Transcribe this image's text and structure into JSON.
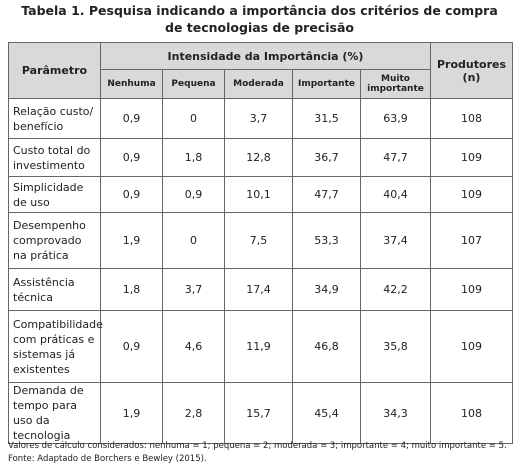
{
  "title": "Tabela 1. Pesquisa indicando a importância dos critérios de compra de tecnologias de precisão",
  "table": {
    "header": {
      "parameter": "Parâmetro",
      "group": "Intensidade da Importância (%)",
      "producers": "Produtores (n)",
      "levels": [
        "Nenhuma",
        "Pequena",
        "Moderada",
        "Importante",
        "Muito importante"
      ]
    },
    "rows": [
      [
        "Relação custo/ benefício",
        "0,9",
        "0",
        "3,7",
        "31,5",
        "63,9",
        "108"
      ],
      [
        "Custo total do investimento",
        "0,9",
        "1,8",
        "12,8",
        "36,7",
        "47,7",
        "109"
      ],
      [
        "Simplicidade de uso",
        "0,9",
        "0,9",
        "10,1",
        "47,7",
        "40,4",
        "109"
      ],
      [
        "Desempenho comprovado na prática",
        "1,9",
        "0",
        "7,5",
        "53,3",
        "37,4",
        "107"
      ],
      [
        "Assistência técnica",
        "1,8",
        "3,7",
        "17,4",
        "34,9",
        "42,2",
        "109"
      ],
      [
        "Compatibilidade com práticas e sistemas já existentes",
        "0,9",
        "4,6",
        "11,9",
        "46,8",
        "35,8",
        "109"
      ],
      [
        "Demanda de tempo para uso da tecnologia",
        "1,9",
        "2,8",
        "15,7",
        "45,4",
        "34,3",
        "108"
      ]
    ]
  },
  "footnote": "Valores de cálculo considerados: nenhuma = 1; pequena = 2; moderada = 3; importante = 4; muito importante = 5. Fonte: Adaptado de Borchers e Bewley (2015)."
}
